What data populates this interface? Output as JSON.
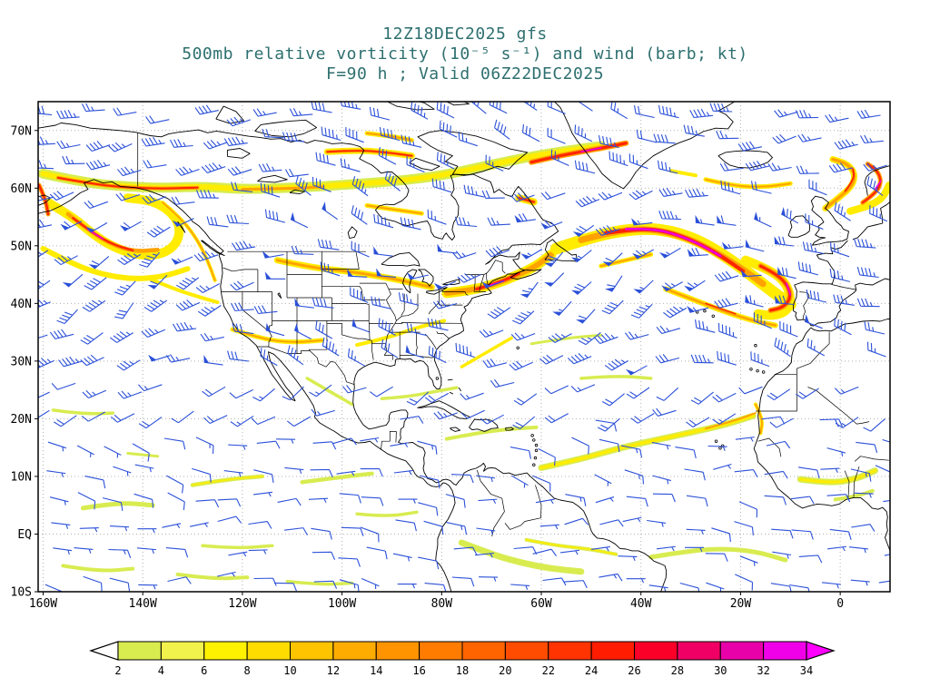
{
  "title": {
    "line1": "12Z18DEC2025 gfs",
    "line2": "500mb relative vorticity (10⁻⁵ s⁻¹) and wind (barb; kt)",
    "line3": "F=90 h ; Valid 06Z22DEC2025"
  },
  "axes": {
    "lat_ticks": [
      {
        "label": "70N",
        "value": 70
      },
      {
        "label": "60N",
        "value": 60
      },
      {
        "label": "50N",
        "value": 50
      },
      {
        "label": "40N",
        "value": 40
      },
      {
        "label": "30N",
        "value": 30
      },
      {
        "label": "20N",
        "value": 20
      },
      {
        "label": "10N",
        "value": 10
      },
      {
        "label": "EQ",
        "value": 0
      },
      {
        "label": "10S",
        "value": -10
      }
    ],
    "lon_ticks": [
      {
        "label": "160W",
        "value": -160
      },
      {
        "label": "140W",
        "value": -140
      },
      {
        "label": "120W",
        "value": -120
      },
      {
        "label": "100W",
        "value": -100
      },
      {
        "label": "80W",
        "value": -80
      },
      {
        "label": "60W",
        "value": -60
      },
      {
        "label": "40W",
        "value": -40
      },
      {
        "label": "20W",
        "value": -20
      },
      {
        "label": "0",
        "value": 0
      }
    ]
  },
  "colorbar": {
    "tick_labels": [
      "2",
      "4",
      "6",
      "8",
      "10",
      "12",
      "14",
      "16",
      "18",
      "20",
      "22",
      "24",
      "26",
      "28",
      "30",
      "32",
      "34"
    ],
    "colors": [
      "#d8ec50",
      "#f2f24c",
      "#fff200",
      "#ffdc00",
      "#ffc400",
      "#ffac00",
      "#ff9400",
      "#ff7c00",
      "#ff6400",
      "#ff4c00",
      "#ff3400",
      "#ff1c00",
      "#fa0028",
      "#f00064",
      "#e800a8",
      "#f000e8"
    ],
    "under_color": "#ffffff",
    "over_color": "#ff00ff"
  },
  "map": {
    "barb_color": "#2b50d9",
    "coast_color": "#000000",
    "grid_color": "#b0b0b0",
    "border_color": "#000000",
    "vort_colors": {
      "G": "#d8ec50",
      "Y": "#ffec00",
      "O": "#ffa200",
      "R": "#ff2600",
      "M": "#ee00d8"
    }
  },
  "chart_data": {
    "type": "heatmap",
    "title": "12Z18DEC2025 gfs",
    "field": "500mb relative vorticity",
    "field_units": "10⁻⁵ s⁻¹",
    "overlay": "wind (barb; kt)",
    "forecast_hour": "F=90 h",
    "valid_time": "Valid 06Z22DEC2025",
    "x_axis": {
      "label": "longitude",
      "tick_labels": [
        "160W",
        "140W",
        "120W",
        "100W",
        "80W",
        "60W",
        "40W",
        "20W",
        "0"
      ],
      "range_deg": [
        -161,
        10
      ]
    },
    "y_axis": {
      "label": "latitude",
      "tick_labels": [
        "70N",
        "60N",
        "50N",
        "40N",
        "30N",
        "20N",
        "10N",
        "EQ",
        "10S"
      ],
      "range_deg": [
        -10,
        75
      ]
    },
    "colorbar": {
      "levels": [
        2,
        4,
        6,
        8,
        10,
        12,
        14,
        16,
        18,
        20,
        22,
        24,
        26,
        28,
        30,
        32,
        34
      ],
      "colors": [
        "#d8ec50",
        "#f2f24c",
        "#fff200",
        "#ffdc00",
        "#ffc400",
        "#ffac00",
        "#ff9400",
        "#ff7c00",
        "#ff6400",
        "#ff4c00",
        "#ff3400",
        "#ff1c00",
        "#fa0028",
        "#f00064",
        "#e800a8",
        "#f000e8"
      ],
      "under": "#ffffff",
      "over": "#ff00ff",
      "position": "bottom"
    },
    "grid": true,
    "notable_features": [
      "strong vorticity band with magenta core across central North Atlantic toward Iberia",
      "cyclonic vortex with red core in Gulf of Alaska",
      "red vorticity maxima near Davis Strait and Labrador",
      "orange-red streak over New England and Atlantic Canada",
      "weak yellow-green ITCZ vorticity wisps in the tropics",
      "westerly wind barbs in midlatitudes, easterly trade-wind barbs in tropics"
    ]
  }
}
